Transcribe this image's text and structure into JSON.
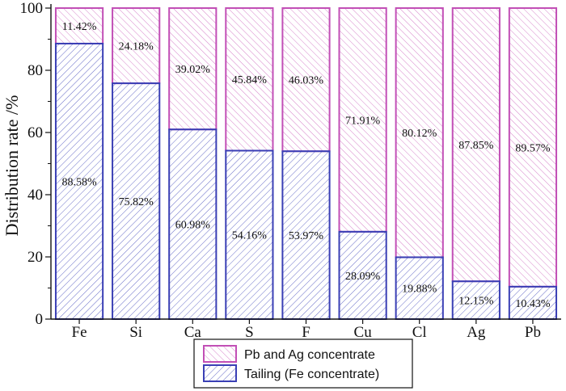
{
  "chart_data": {
    "type": "bar",
    "stacked": true,
    "categories": [
      "Fe",
      "Si",
      "Ca",
      "S",
      "F",
      "Cu",
      "Cl",
      "Ag",
      "Pb"
    ],
    "series": [
      {
        "name": "Tailing (Fe concentrate)",
        "values": [
          88.58,
          75.82,
          60.98,
          54.16,
          53.97,
          28.09,
          19.88,
          12.15,
          10.43
        ],
        "labels": [
          "88.58%",
          "75.82%",
          "60.98%",
          "54.16%",
          "53.97%",
          "28.09%",
          "19.88%",
          "12.15%",
          "10.43%"
        ],
        "color": "#3a3fb5"
      },
      {
        "name": "Pb and Ag concentrate",
        "values": [
          11.42,
          24.18,
          39.02,
          45.84,
          46.03,
          71.91,
          80.12,
          87.85,
          89.57
        ],
        "labels": [
          "11.42%",
          "24.18%",
          "39.02%",
          "45.84%",
          "46.03%",
          "71.91%",
          "80.12%",
          "87.85%",
          "89.57%"
        ],
        "color": "#c24fb6"
      }
    ],
    "ylabel": "Distribution rate /%",
    "xlabel": "",
    "ylim": [
      0,
      100
    ],
    "yticks": [
      "0",
      "20",
      "40",
      "60",
      "80",
      "100"
    ],
    "legend_position": "bottom-center",
    "grid": false
  }
}
